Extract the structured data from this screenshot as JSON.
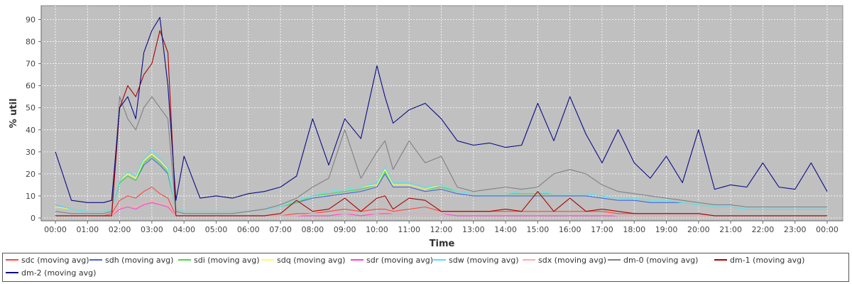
{
  "chart_data": {
    "type": "line",
    "title": "",
    "xlabel": "Time",
    "ylabel": "% util",
    "ylim": [
      0,
      95
    ],
    "xlim": [
      "00:00",
      "00:00"
    ],
    "grid": true,
    "legend_position": "bottom",
    "background_color": "#c0c0c0",
    "grid_color": "#ffffff",
    "x_ticks": [
      "00:00",
      "01:00",
      "02:00",
      "03:00",
      "04:00",
      "05:00",
      "06:00",
      "07:00",
      "08:00",
      "09:00",
      "10:00",
      "11:00",
      "12:00",
      "13:00",
      "14:00",
      "15:00",
      "16:00",
      "17:00",
      "18:00",
      "19:00",
      "20:00",
      "21:00",
      "22:00",
      "23:00",
      "00:00"
    ],
    "y_ticks": [
      0,
      10,
      20,
      30,
      40,
      50,
      60,
      70,
      80,
      90
    ],
    "x": [
      "00:00",
      "00:30",
      "01:00",
      "01:30",
      "01:45",
      "02:00",
      "02:15",
      "02:30",
      "02:45",
      "03:00",
      "03:15",
      "03:30",
      "03:45",
      "04:00",
      "04:30",
      "05:00",
      "05:30",
      "06:00",
      "06:30",
      "07:00",
      "07:30",
      "08:00",
      "08:30",
      "09:00",
      "09:30",
      "10:00",
      "10:15",
      "10:30",
      "11:00",
      "11:30",
      "12:00",
      "12:30",
      "13:00",
      "13:30",
      "14:00",
      "14:30",
      "15:00",
      "15:30",
      "16:00",
      "16:30",
      "17:00",
      "17:30",
      "18:00",
      "18:30",
      "19:00",
      "19:30",
      "20:00",
      "20:30",
      "21:00",
      "21:30",
      "22:00",
      "22:30",
      "23:00",
      "23:30",
      "00:00"
    ],
    "series": [
      {
        "name": "sdc (moving avg)",
        "color": "#ff4444",
        "values": [
          1,
          1,
          1,
          1,
          2,
          8,
          10,
          9,
          12,
          14,
          11,
          9,
          1,
          1,
          1,
          1,
          1,
          1,
          1,
          1,
          2,
          2,
          3,
          4,
          3,
          4,
          4,
          3,
          4,
          5,
          3,
          3,
          3,
          3,
          3,
          3,
          3,
          3,
          3,
          3,
          3,
          2,
          2,
          2,
          2,
          2,
          2,
          1,
          1,
          1,
          1,
          1,
          1,
          1,
          1
        ]
      },
      {
        "name": "sdh (moving avg)",
        "color": "#4466dd",
        "values": [
          6,
          4,
          3,
          3,
          4,
          16,
          19,
          17,
          24,
          27,
          24,
          20,
          4,
          3,
          3,
          3,
          3,
          3,
          4,
          5,
          7,
          9,
          10,
          11,
          12,
          14,
          20,
          14,
          14,
          12,
          13,
          11,
          10,
          10,
          10,
          10,
          10,
          10,
          10,
          10,
          9,
          8,
          8,
          7,
          7,
          7,
          6,
          5,
          5,
          4,
          4,
          4,
          4,
          4,
          4
        ]
      },
      {
        "name": "sdi (moving avg)",
        "color": "#44dd44",
        "values": [
          5,
          4,
          3,
          3,
          4,
          16,
          19,
          17,
          25,
          28,
          25,
          21,
          4,
          3,
          3,
          3,
          3,
          3,
          4,
          5,
          7,
          10,
          11,
          12,
          13,
          15,
          21,
          15,
          15,
          13,
          14,
          12,
          11,
          11,
          11,
          11,
          11,
          11,
          11,
          11,
          10,
          9,
          9,
          8,
          8,
          7,
          6,
          5,
          5,
          4,
          4,
          4,
          4,
          4,
          4
        ]
      },
      {
        "name": "sdq (moving avg)",
        "color": "#ffff55",
        "values": [
          5,
          4,
          3,
          3,
          4,
          17,
          20,
          18,
          26,
          29,
          26,
          22,
          4,
          3,
          3,
          3,
          3,
          3,
          4,
          5,
          8,
          10,
          12,
          13,
          14,
          15,
          22,
          15,
          15,
          13,
          15,
          12,
          11,
          11,
          11,
          12,
          12,
          11,
          11,
          11,
          10,
          9,
          9,
          8,
          8,
          7,
          6,
          5,
          5,
          4,
          4,
          4,
          4,
          4,
          4
        ]
      },
      {
        "name": "sdr (moving avg)",
        "color": "#ff44cc",
        "values": [
          1,
          1,
          1,
          1,
          1,
          4,
          5,
          4,
          6,
          7,
          6,
          5,
          1,
          1,
          1,
          1,
          1,
          1,
          1,
          1,
          1,
          1,
          1,
          2,
          1,
          2,
          2,
          2,
          2,
          2,
          2,
          1,
          1,
          1,
          1,
          1,
          1,
          1,
          1,
          1,
          1,
          1,
          1,
          1,
          1,
          1,
          1,
          1,
          1,
          1,
          1,
          1,
          1,
          1,
          1
        ]
      },
      {
        "name": "sdw (moving avg)",
        "color": "#55ddff",
        "values": [
          6,
          4,
          3,
          3,
          4,
          17,
          21,
          19,
          27,
          31,
          27,
          23,
          4,
          3,
          3,
          3,
          3,
          3,
          4,
          5,
          8,
          10,
          12,
          13,
          14,
          16,
          23,
          16,
          16,
          14,
          15,
          12,
          11,
          11,
          11,
          12,
          12,
          11,
          11,
          11,
          10,
          9,
          9,
          8,
          8,
          7,
          6,
          5,
          5,
          4,
          4,
          4,
          4,
          4,
          4
        ]
      },
      {
        "name": "sdx (moving avg)",
        "color": "#ffaaaa",
        "values": [
          1,
          1,
          1,
          1,
          1,
          5,
          6,
          5,
          7,
          8,
          7,
          6,
          1,
          1,
          1,
          1,
          1,
          1,
          1,
          1,
          1,
          2,
          2,
          2,
          2,
          2,
          3,
          2,
          2,
          2,
          2,
          2,
          2,
          2,
          2,
          2,
          2,
          2,
          2,
          2,
          2,
          1,
          1,
          1,
          1,
          1,
          1,
          1,
          1,
          1,
          1,
          1,
          1,
          1,
          1
        ]
      },
      {
        "name": "dm-0 (moving avg)",
        "color": "#808080",
        "values": [
          3,
          2,
          2,
          2,
          3,
          55,
          45,
          40,
          50,
          55,
          50,
          45,
          3,
          2,
          2,
          2,
          2,
          3,
          4,
          6,
          9,
          14,
          18,
          40,
          18,
          30,
          35,
          22,
          35,
          25,
          28,
          14,
          12,
          13,
          14,
          13,
          14,
          20,
          22,
          20,
          15,
          12,
          11,
          10,
          9,
          8,
          7,
          6,
          6,
          5,
          5,
          5,
          5,
          5,
          5
        ]
      },
      {
        "name": "dm-1 (moving avg)",
        "color": "#aa0000",
        "values": [
          1,
          1,
          1,
          1,
          1,
          50,
          60,
          55,
          65,
          70,
          85,
          75,
          1,
          1,
          1,
          1,
          1,
          1,
          1,
          2,
          8,
          3,
          4,
          9,
          3,
          9,
          10,
          4,
          9,
          8,
          3,
          3,
          3,
          3,
          4,
          3,
          12,
          3,
          9,
          3,
          4,
          3,
          2,
          2,
          2,
          2,
          2,
          1,
          1,
          1,
          1,
          1,
          1,
          1,
          1
        ]
      },
      {
        "name": "dm-2 (moving avg)",
        "color": "#0a0a88",
        "values": [
          30,
          8,
          7,
          7,
          8,
          50,
          55,
          45,
          75,
          85,
          91,
          60,
          8,
          28,
          9,
          10,
          9,
          11,
          12,
          14,
          19,
          45,
          24,
          45,
          36,
          69,
          55,
          43,
          49,
          52,
          45,
          35,
          33,
          34,
          32,
          33,
          52,
          35,
          55,
          38,
          25,
          40,
          25,
          18,
          28,
          16,
          40,
          13,
          15,
          14,
          25,
          14,
          13,
          25,
          12
        ]
      }
    ]
  },
  "legend": {
    "items": [
      {
        "label": "sdc (moving avg)",
        "color": "#ff4444"
      },
      {
        "label": "sdh (moving avg)",
        "color": "#4466dd"
      },
      {
        "label": "sdi (moving avg)",
        "color": "#44dd44"
      },
      {
        "label": "sdq (moving avg)",
        "color": "#ffff55"
      },
      {
        "label": "sdr (moving avg)",
        "color": "#ff44cc"
      },
      {
        "label": "sdw (moving avg)",
        "color": "#55ddff"
      },
      {
        "label": "sdx (moving avg)",
        "color": "#ffaaaa"
      },
      {
        "label": "dm-0 (moving avg)",
        "color": "#808080"
      },
      {
        "label": "dm-1 (moving avg)",
        "color": "#aa0000"
      },
      {
        "label": "dm-2 (moving avg)",
        "color": "#0a0a88"
      }
    ]
  }
}
